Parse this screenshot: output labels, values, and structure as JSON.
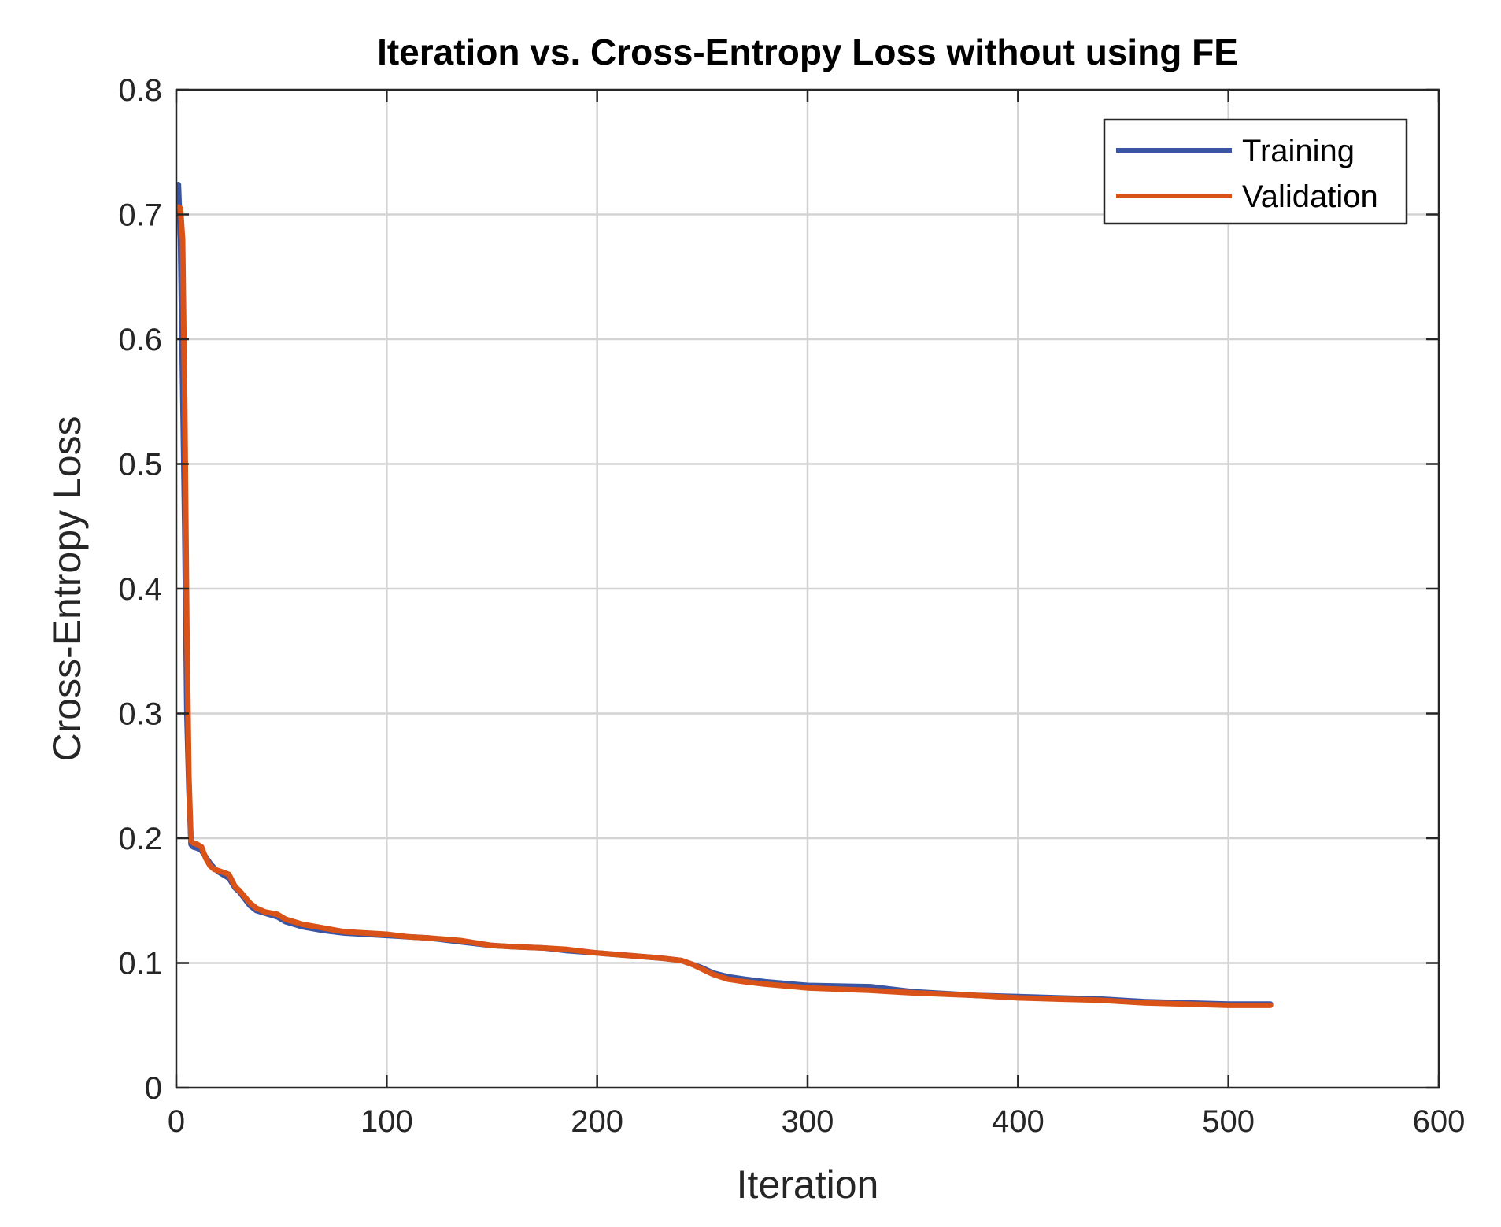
{
  "chart_data": {
    "type": "line",
    "title": "Iteration vs. Cross-Entropy Loss without using FE",
    "xlabel": "Iteration",
    "ylabel": "Cross-Entropy Loss",
    "xlim": [
      0,
      600
    ],
    "ylim": [
      0,
      0.8
    ],
    "xticks": [
      0,
      100,
      200,
      300,
      400,
      500,
      600
    ],
    "yticks": [
      0,
      0.1,
      0.2,
      0.3,
      0.4,
      0.5,
      0.6,
      0.7,
      0.8
    ],
    "xtick_labels": [
      "0",
      "100",
      "200",
      "300",
      "400",
      "500",
      "600"
    ],
    "ytick_labels": [
      "0",
      "0.1",
      "0.2",
      "0.3",
      "0.4",
      "0.5",
      "0.6",
      "0.7",
      "0.8"
    ],
    "grid": true,
    "legend_position": "top-right",
    "series": [
      {
        "name": "Training",
        "color": "#3a55a4",
        "x": [
          1,
          2,
          4,
          5,
          6,
          7,
          8,
          10,
          12,
          14,
          16,
          18,
          20,
          25,
          28,
          30,
          35,
          38,
          42,
          48,
          52,
          60,
          70,
          80,
          100,
          110,
          120,
          135,
          150,
          160,
          175,
          185,
          200,
          215,
          230,
          240,
          245,
          250,
          255,
          262,
          270,
          280,
          300,
          330,
          340,
          350,
          380,
          400,
          420,
          440,
          460,
          480,
          500,
          520
        ],
        "y": [
          0.724,
          0.68,
          0.45,
          0.3,
          0.24,
          0.195,
          0.193,
          0.192,
          0.19,
          0.185,
          0.18,
          0.176,
          0.173,
          0.168,
          0.16,
          0.157,
          0.146,
          0.142,
          0.14,
          0.137,
          0.133,
          0.129,
          0.126,
          0.124,
          0.122,
          0.121,
          0.12,
          0.117,
          0.114,
          0.113,
          0.112,
          0.11,
          0.108,
          0.106,
          0.104,
          0.102,
          0.099,
          0.096,
          0.092,
          0.089,
          0.087,
          0.085,
          0.082,
          0.081,
          0.079,
          0.077,
          0.074,
          0.073,
          0.072,
          0.071,
          0.069,
          0.068,
          0.067,
          0.067
        ]
      },
      {
        "name": "Validation",
        "color": "#d95319",
        "x": [
          1,
          2,
          3,
          4,
          5,
          6,
          7,
          8,
          10,
          12,
          14,
          16,
          18,
          20,
          25,
          28,
          30,
          35,
          38,
          42,
          48,
          52,
          60,
          70,
          80,
          100,
          110,
          120,
          135,
          150,
          160,
          175,
          185,
          200,
          215,
          230,
          240,
          245,
          250,
          255,
          262,
          270,
          280,
          300,
          330,
          340,
          350,
          380,
          400,
          420,
          440,
          460,
          480,
          500,
          520
        ],
        "y": [
          0.706,
          0.705,
          0.68,
          0.55,
          0.37,
          0.25,
          0.198,
          0.196,
          0.195,
          0.193,
          0.184,
          0.178,
          0.175,
          0.174,
          0.171,
          0.161,
          0.158,
          0.148,
          0.144,
          0.141,
          0.139,
          0.135,
          0.131,
          0.128,
          0.125,
          0.123,
          0.121,
          0.12,
          0.118,
          0.114,
          0.113,
          0.112,
          0.111,
          0.108,
          0.106,
          0.104,
          0.102,
          0.099,
          0.095,
          0.091,
          0.087,
          0.085,
          0.083,
          0.08,
          0.078,
          0.077,
          0.076,
          0.074,
          0.072,
          0.071,
          0.07,
          0.068,
          0.067,
          0.066,
          0.066
        ]
      }
    ]
  }
}
